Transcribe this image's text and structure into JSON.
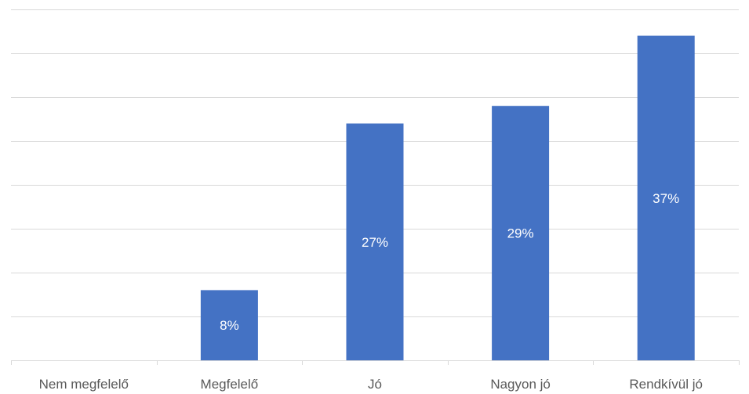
{
  "chart_data": {
    "type": "bar",
    "categories": [
      "Nem megfelelő",
      "Megfelelő",
      "Jó",
      "Nagyon jó",
      "Rendkívül jó"
    ],
    "values": [
      0,
      8,
      27,
      29,
      37
    ],
    "data_labels": [
      "",
      "8%",
      "27%",
      "29%",
      "37%"
    ],
    "ylim": [
      0,
      40
    ],
    "gridlines": [
      0,
      5,
      10,
      15,
      20,
      25,
      30,
      35,
      40
    ],
    "grid": true,
    "legend": "none",
    "bar_color": "#4472C4",
    "grid_color": "#D9D9D9",
    "label_color": "#595959"
  }
}
